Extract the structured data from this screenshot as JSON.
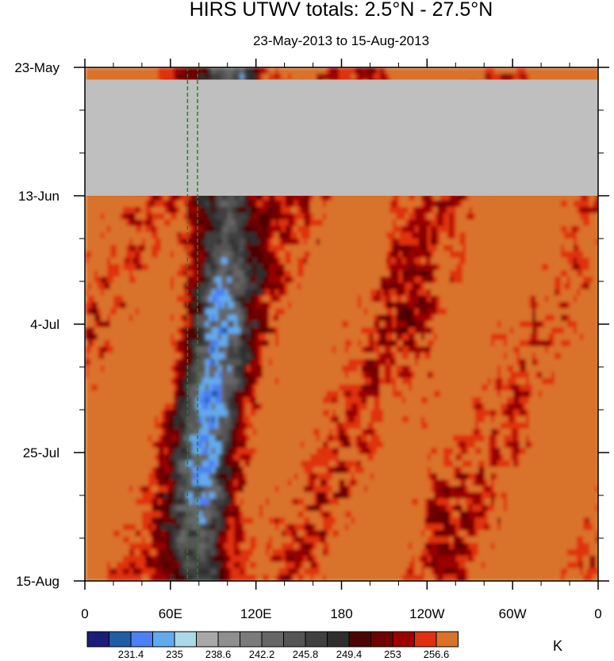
{
  "chart_data": {
    "type": "heatmap",
    "title": "HIRS UTWV totals: 2.5°N - 27.5°N",
    "subtitle": "23-May-2013 to 15-Aug-2013",
    "x_ticks": [
      "0",
      "60E",
      "120E",
      "180",
      "120W",
      "60W",
      "0"
    ],
    "y_ticks": [
      "23-May",
      "13-Jun",
      "4-Jul",
      "25-Jul",
      "15-Aug"
    ],
    "xlim": [
      0,
      360
    ],
    "ylim": [
      "2013-05-23",
      "2013-08-15"
    ],
    "missing_data_period": [
      "2013-05-25",
      "2013-06-13"
    ],
    "missing_data_color": "#bfbfbf",
    "reference_lines": {
      "longitudes": [
        72,
        79
      ],
      "style": "dashed",
      "color": "#1a8a1a"
    },
    "colorbar": {
      "unit": "K",
      "levels": [
        231.4,
        235,
        238.6,
        242.2,
        245.8,
        249.4,
        253,
        256.6
      ],
      "level_labels": [
        "231.4",
        "235",
        "238.6",
        "242.2",
        "245.8",
        "249.4",
        "253",
        "256.6"
      ],
      "colors": [
        "#1c1c7a",
        "#1f5ea3",
        "#4d7ff5",
        "#62aaee",
        "#aad9ea",
        "#a8a8a8",
        "#8f8f8f",
        "#7b7b7b",
        "#666666",
        "#555555",
        "#404040",
        "#2e2e2e",
        "#4d0505",
        "#6e0303",
        "#9b0000",
        "#e03010",
        "#d9722a"
      ]
    }
  }
}
